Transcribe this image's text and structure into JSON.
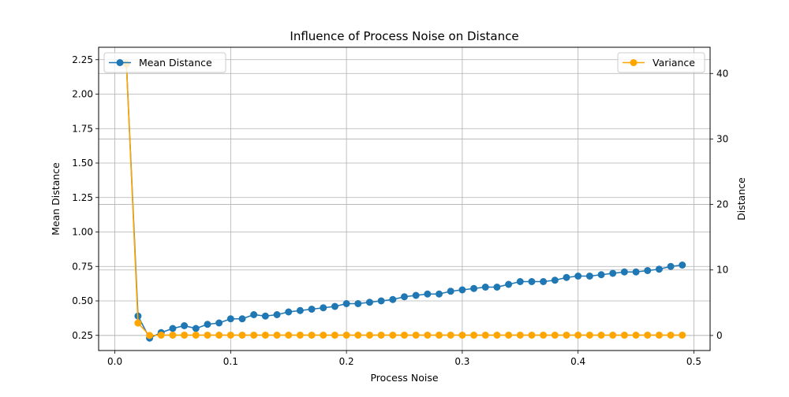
{
  "chart_data": {
    "type": "line",
    "title": "Influence of Process Noise on Distance",
    "xlabel": "Process Noise",
    "ylabel_left": "Mean Distance",
    "ylabel_right": "Distance",
    "xlim": [
      -0.014,
      0.514
    ],
    "ylim_left": [
      0.14,
      2.34
    ],
    "ylim_right": [
      -2.3,
      44.0
    ],
    "x_ticks": [
      0.0,
      0.1,
      0.2,
      0.3,
      0.4,
      0.5
    ],
    "x_tick_labels": [
      "0.0",
      "0.1",
      "0.2",
      "0.3",
      "0.4",
      "0.5"
    ],
    "y_left_ticks": [
      0.25,
      0.5,
      0.75,
      1.0,
      1.25,
      1.5,
      1.75,
      2.0,
      2.25
    ],
    "y_left_tick_labels": [
      "0.25",
      "0.50",
      "0.75",
      "1.00",
      "1.25",
      "1.50",
      "1.75",
      "2.00",
      "2.25"
    ],
    "y_right_ticks": [
      0,
      10,
      20,
      30,
      40
    ],
    "y_right_tick_labels": [
      "0",
      "10",
      "20",
      "30",
      "40"
    ],
    "grid": true,
    "x": [
      0.01,
      0.02,
      0.03,
      0.04,
      0.05,
      0.06,
      0.07,
      0.08,
      0.09,
      0.1,
      0.11,
      0.12,
      0.13,
      0.14,
      0.15,
      0.16,
      0.17,
      0.18,
      0.19,
      0.2,
      0.21,
      0.22,
      0.23,
      0.24,
      0.25,
      0.26,
      0.27,
      0.28,
      0.29,
      0.3,
      0.31,
      0.32,
      0.33,
      0.34,
      0.35,
      0.36,
      0.37,
      0.38,
      0.39,
      0.4,
      0.41,
      0.42,
      0.43,
      0.44,
      0.45,
      0.46,
      0.47,
      0.48,
      0.49
    ],
    "series": [
      {
        "name": "Mean Distance",
        "axis": "left",
        "color": "#1f77b4",
        "legend_position": "upper left",
        "values": [
          2.22,
          0.39,
          0.23,
          0.27,
          0.3,
          0.32,
          0.3,
          0.33,
          0.34,
          0.37,
          0.37,
          0.4,
          0.39,
          0.4,
          0.42,
          0.43,
          0.44,
          0.45,
          0.46,
          0.48,
          0.48,
          0.49,
          0.5,
          0.51,
          0.53,
          0.54,
          0.55,
          0.55,
          0.57,
          0.58,
          0.59,
          0.6,
          0.6,
          0.62,
          0.64,
          0.64,
          0.64,
          0.65,
          0.67,
          0.68,
          0.68,
          0.69,
          0.7,
          0.71,
          0.71,
          0.72,
          0.73,
          0.75,
          0.76
        ]
      },
      {
        "name": "Variance",
        "axis": "right",
        "color": "#ffa500",
        "legend_position": "upper right",
        "values": [
          41.5,
          1.9,
          0.0,
          0.05,
          0.05,
          0.05,
          0.05,
          0.05,
          0.05,
          0.05,
          0.05,
          0.05,
          0.05,
          0.05,
          0.05,
          0.05,
          0.05,
          0.05,
          0.05,
          0.05,
          0.05,
          0.05,
          0.05,
          0.05,
          0.05,
          0.05,
          0.05,
          0.05,
          0.05,
          0.05,
          0.05,
          0.05,
          0.05,
          0.05,
          0.05,
          0.05,
          0.05,
          0.05,
          0.05,
          0.05,
          0.05,
          0.05,
          0.05,
          0.05,
          0.05,
          0.05,
          0.05,
          0.05,
          0.05
        ]
      }
    ]
  }
}
